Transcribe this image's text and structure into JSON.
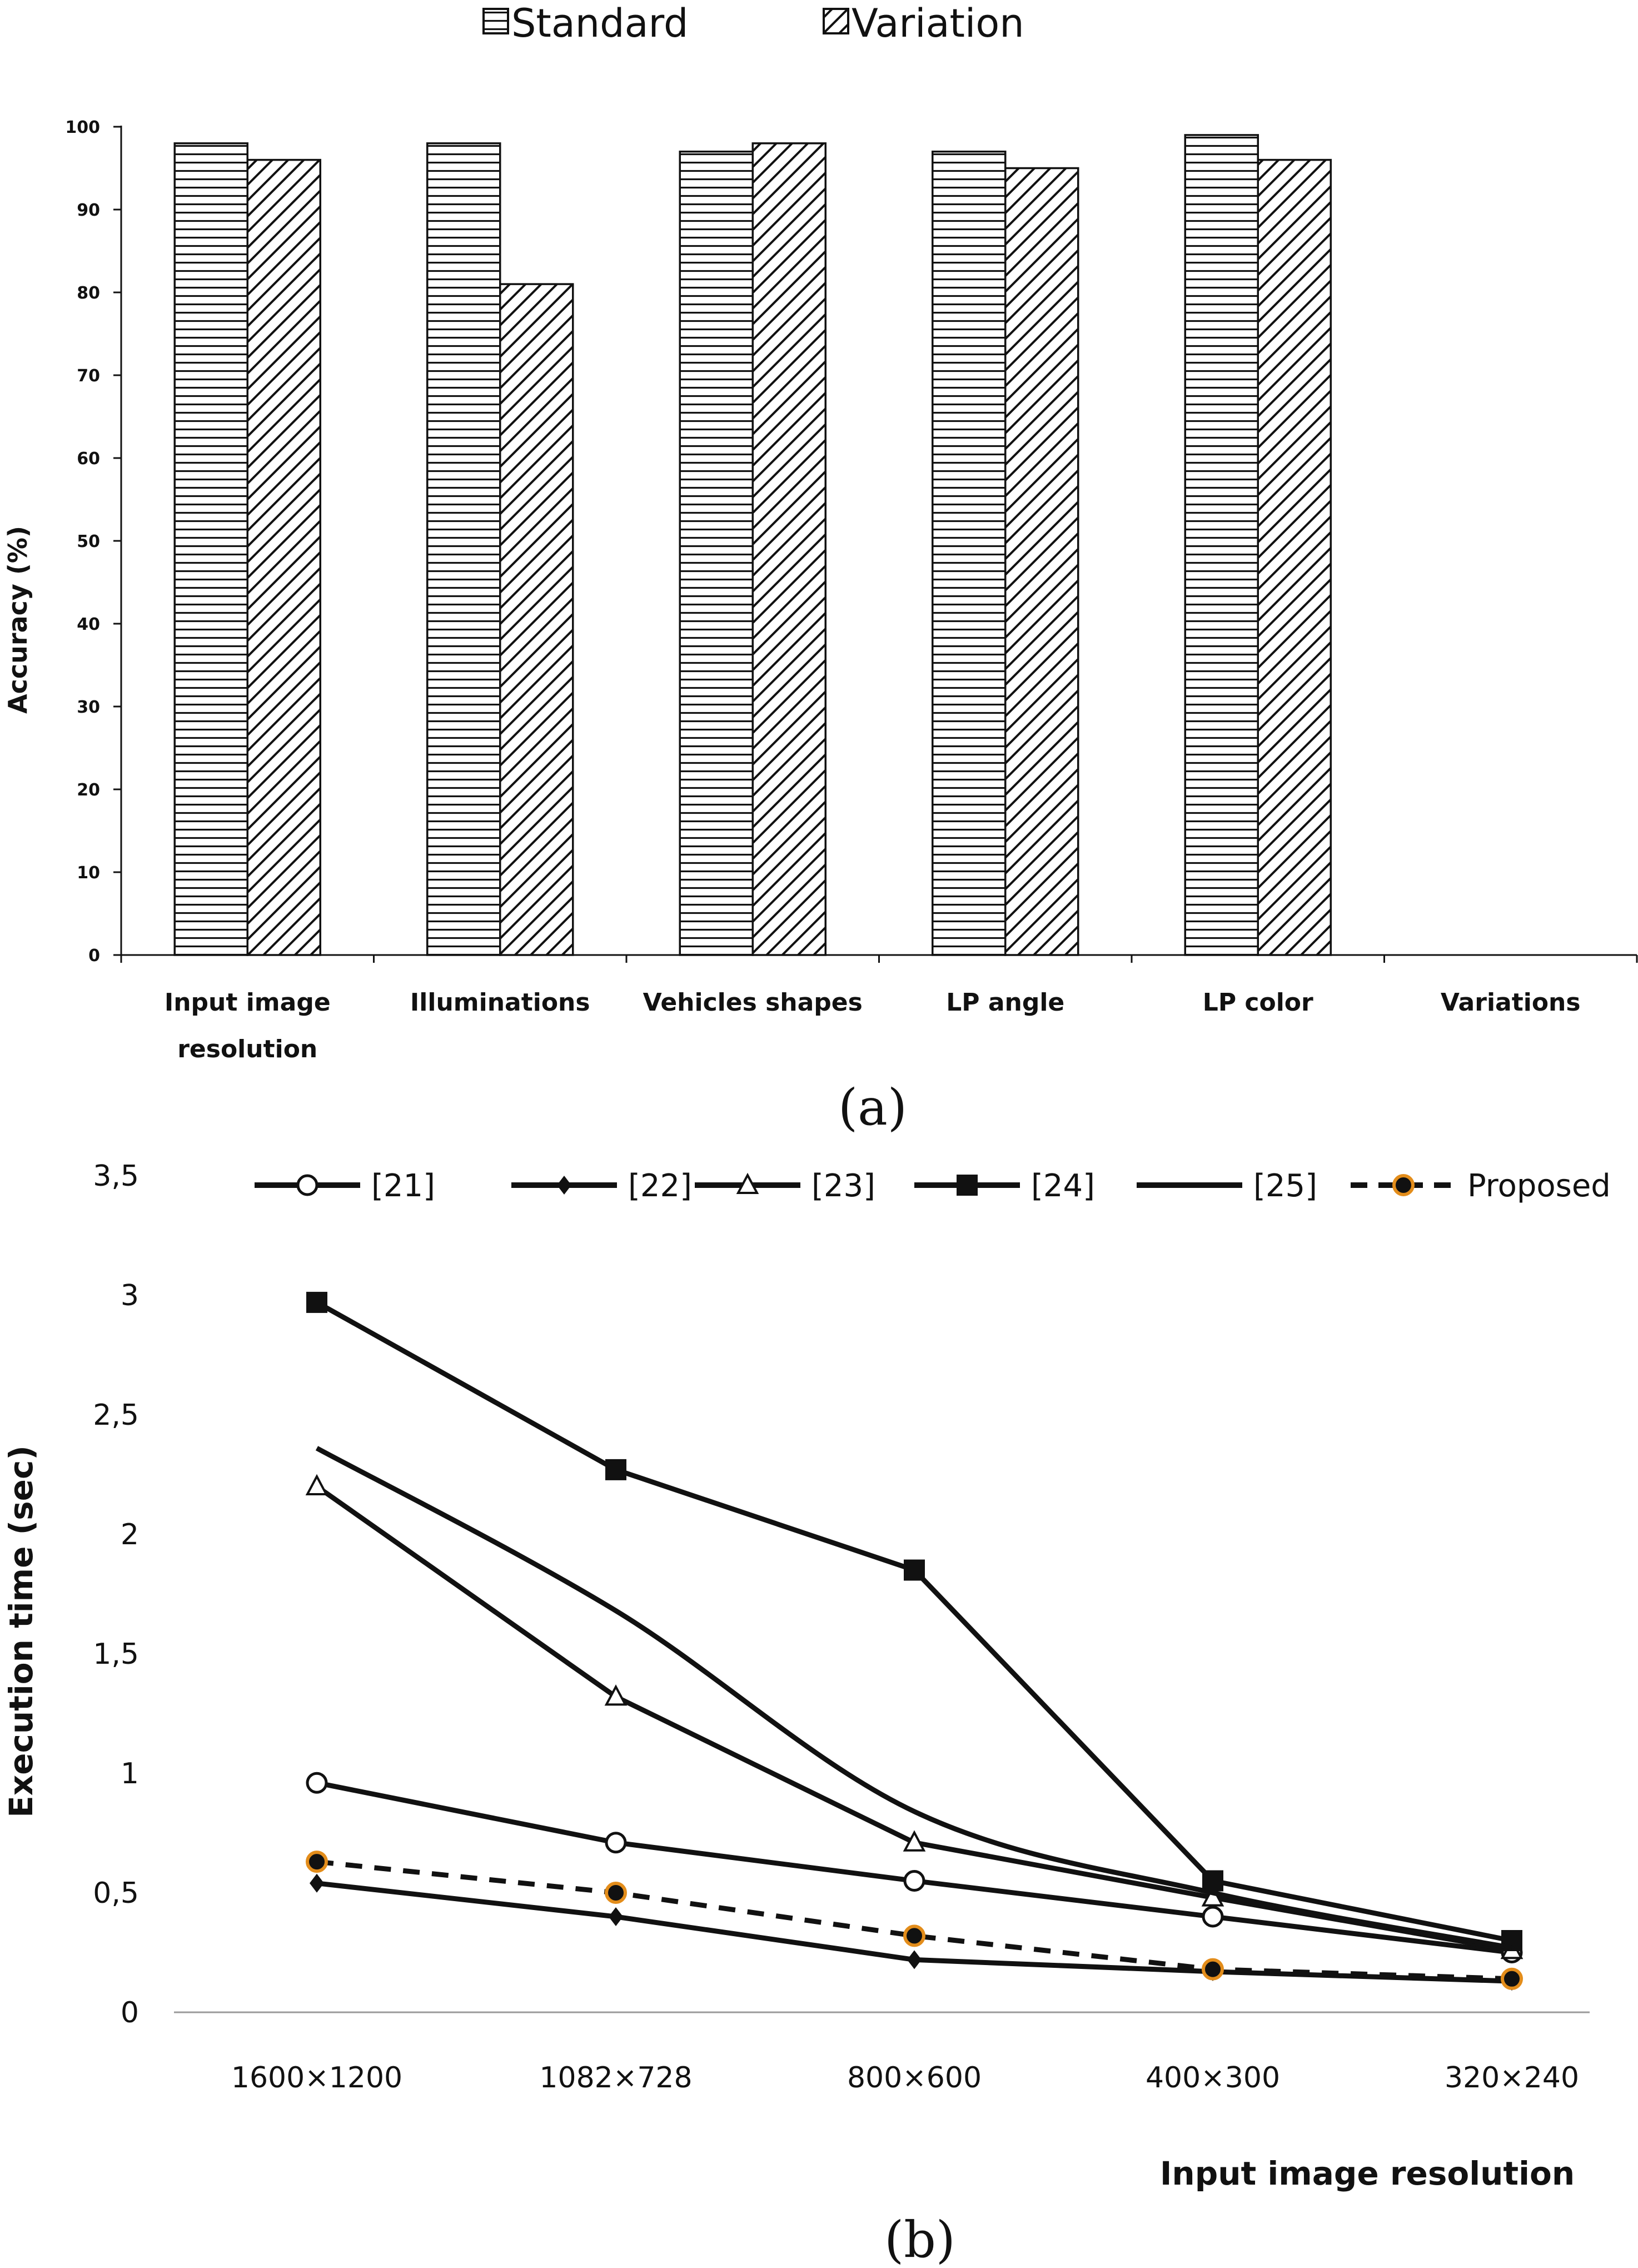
{
  "chart_data": [
    {
      "type": "bar",
      "panel_label": "(a)",
      "title": "",
      "ylabel": "Accuracy (%)",
      "xlabel": "",
      "ylim": [
        0,
        100
      ],
      "yticks": [
        "0",
        "10",
        "20",
        "30",
        "40",
        "50",
        "60",
        "70",
        "80",
        "90",
        "100"
      ],
      "categories": [
        [
          "Input image",
          "resolution"
        ],
        [
          "Illuminations"
        ],
        [
          "Vehicles shapes"
        ],
        [
          "LP angle"
        ],
        [
          "LP color"
        ],
        [
          "Variations"
        ]
      ],
      "series": [
        {
          "name": "Standard",
          "pattern": "horizontal-lines",
          "values": [
            98,
            98,
            97,
            97,
            99,
            null
          ]
        },
        {
          "name": "Variation",
          "pattern": "diagonal-hatch",
          "values": [
            96,
            81,
            98,
            95,
            96,
            null
          ]
        }
      ],
      "legend": "top-center",
      "grid": false
    },
    {
      "type": "line",
      "panel_label": "(b)",
      "title": "",
      "ylabel": "Execution time (sec)",
      "xlabel": "Input image resolution",
      "ylim": [
        0,
        3.5
      ],
      "yticks": [
        "0",
        "0,5",
        "1",
        "1,5",
        "2",
        "2,5",
        "3",
        "3,5"
      ],
      "categories": [
        "1600×1200",
        "1082×728",
        "800×600",
        "400×300",
        "320×240"
      ],
      "series": [
        {
          "name": "[21]",
          "marker": "open-circle",
          "dash": false,
          "values": [
            0.96,
            0.71,
            0.55,
            0.4,
            0.25
          ]
        },
        {
          "name": "[22]",
          "marker": "diamond",
          "dash": false,
          "values": [
            0.54,
            0.4,
            0.22,
            0.17,
            0.13
          ]
        },
        {
          "name": "[23]",
          "marker": "open-triangle",
          "dash": false,
          "values": [
            2.2,
            1.32,
            0.71,
            0.48,
            0.26
          ]
        },
        {
          "name": "[24]",
          "marker": "square",
          "dash": false,
          "values": [
            2.97,
            2.27,
            1.85,
            0.55,
            0.3
          ]
        },
        {
          "name": "[25]",
          "marker": "none",
          "dash": false,
          "values": [
            2.36,
            1.68,
            0.84,
            0.5,
            0.27
          ]
        },
        {
          "name": "Proposed",
          "marker": "orange-dot",
          "dash": true,
          "values": [
            0.63,
            0.5,
            0.32,
            0.18,
            0.14
          ]
        }
      ],
      "legend": "top",
      "grid": false
    }
  ],
  "colors": {
    "ink": "#111111",
    "proposed_marker": "#e38d1b",
    "background": "#ffffff"
  }
}
